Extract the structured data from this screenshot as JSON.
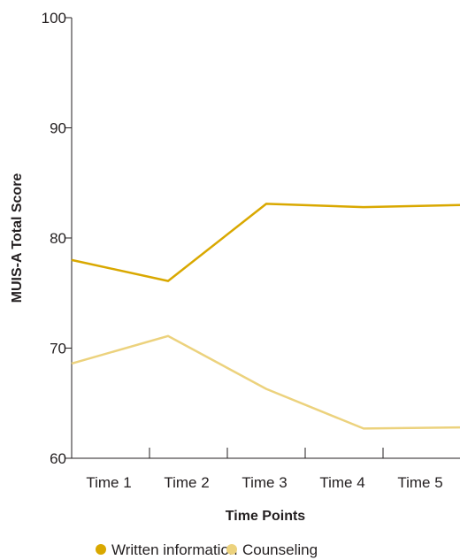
{
  "chart_data": {
    "type": "line",
    "categories": [
      "Time 1",
      "Time 2",
      "Time 3",
      "Time 4",
      "Time 5"
    ],
    "series": [
      {
        "name": "Written information",
        "color": "#d9a800",
        "values": [
          78.0,
          76.1,
          83.1,
          82.8,
          83.0
        ]
      },
      {
        "name": "Counseling",
        "color": "#ecd27d",
        "values": [
          68.6,
          71.1,
          66.3,
          62.7,
          62.8
        ]
      }
    ],
    "xlabel": "Time Points",
    "ylabel": "MUIS-A Total Score",
    "ylim": [
      60,
      100
    ],
    "yticks": [
      60,
      70,
      80,
      90,
      100
    ],
    "grid": false,
    "legend_position": "bottom"
  }
}
